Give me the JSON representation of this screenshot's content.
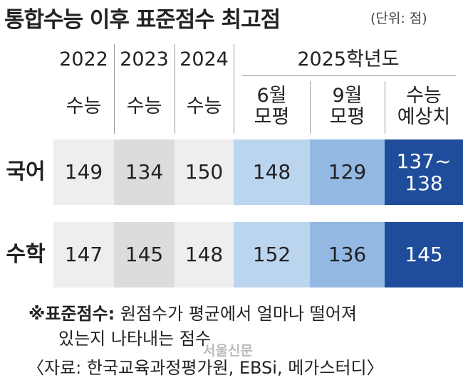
{
  "title": "통합수능 이후 표준점수 최고점",
  "unit": "(단위: 점)",
  "table": {
    "years": [
      "2022",
      "2023",
      "2024",
      "2025학년도"
    ],
    "subheaders": [
      [
        "수능"
      ],
      [
        "수능"
      ],
      [
        "수능"
      ],
      [
        "6월",
        "모평"
      ],
      [
        "9월",
        "모평"
      ],
      [
        "수능",
        "예상치"
      ]
    ],
    "rows": [
      {
        "label": "국어",
        "cells": [
          [
            149
          ],
          [
            134
          ],
          [
            150
          ],
          [
            148
          ],
          [
            129
          ],
          [
            "137~",
            "138"
          ]
        ]
      },
      {
        "label": "수학",
        "cells": [
          [
            147
          ],
          [
            145
          ],
          [
            148
          ],
          [
            152
          ],
          [
            136
          ],
          [
            145
          ]
        ]
      }
    ]
  },
  "note": {
    "term": "※표준점수:",
    "lines": [
      "원점수가 평균에서 얼마나 떨어져",
      "있는지 나타내는 점수"
    ]
  },
  "source": "〈자료: 한국교육과정평가원, EBSi, 메가스터디〉",
  "watermark": "서울신문"
}
